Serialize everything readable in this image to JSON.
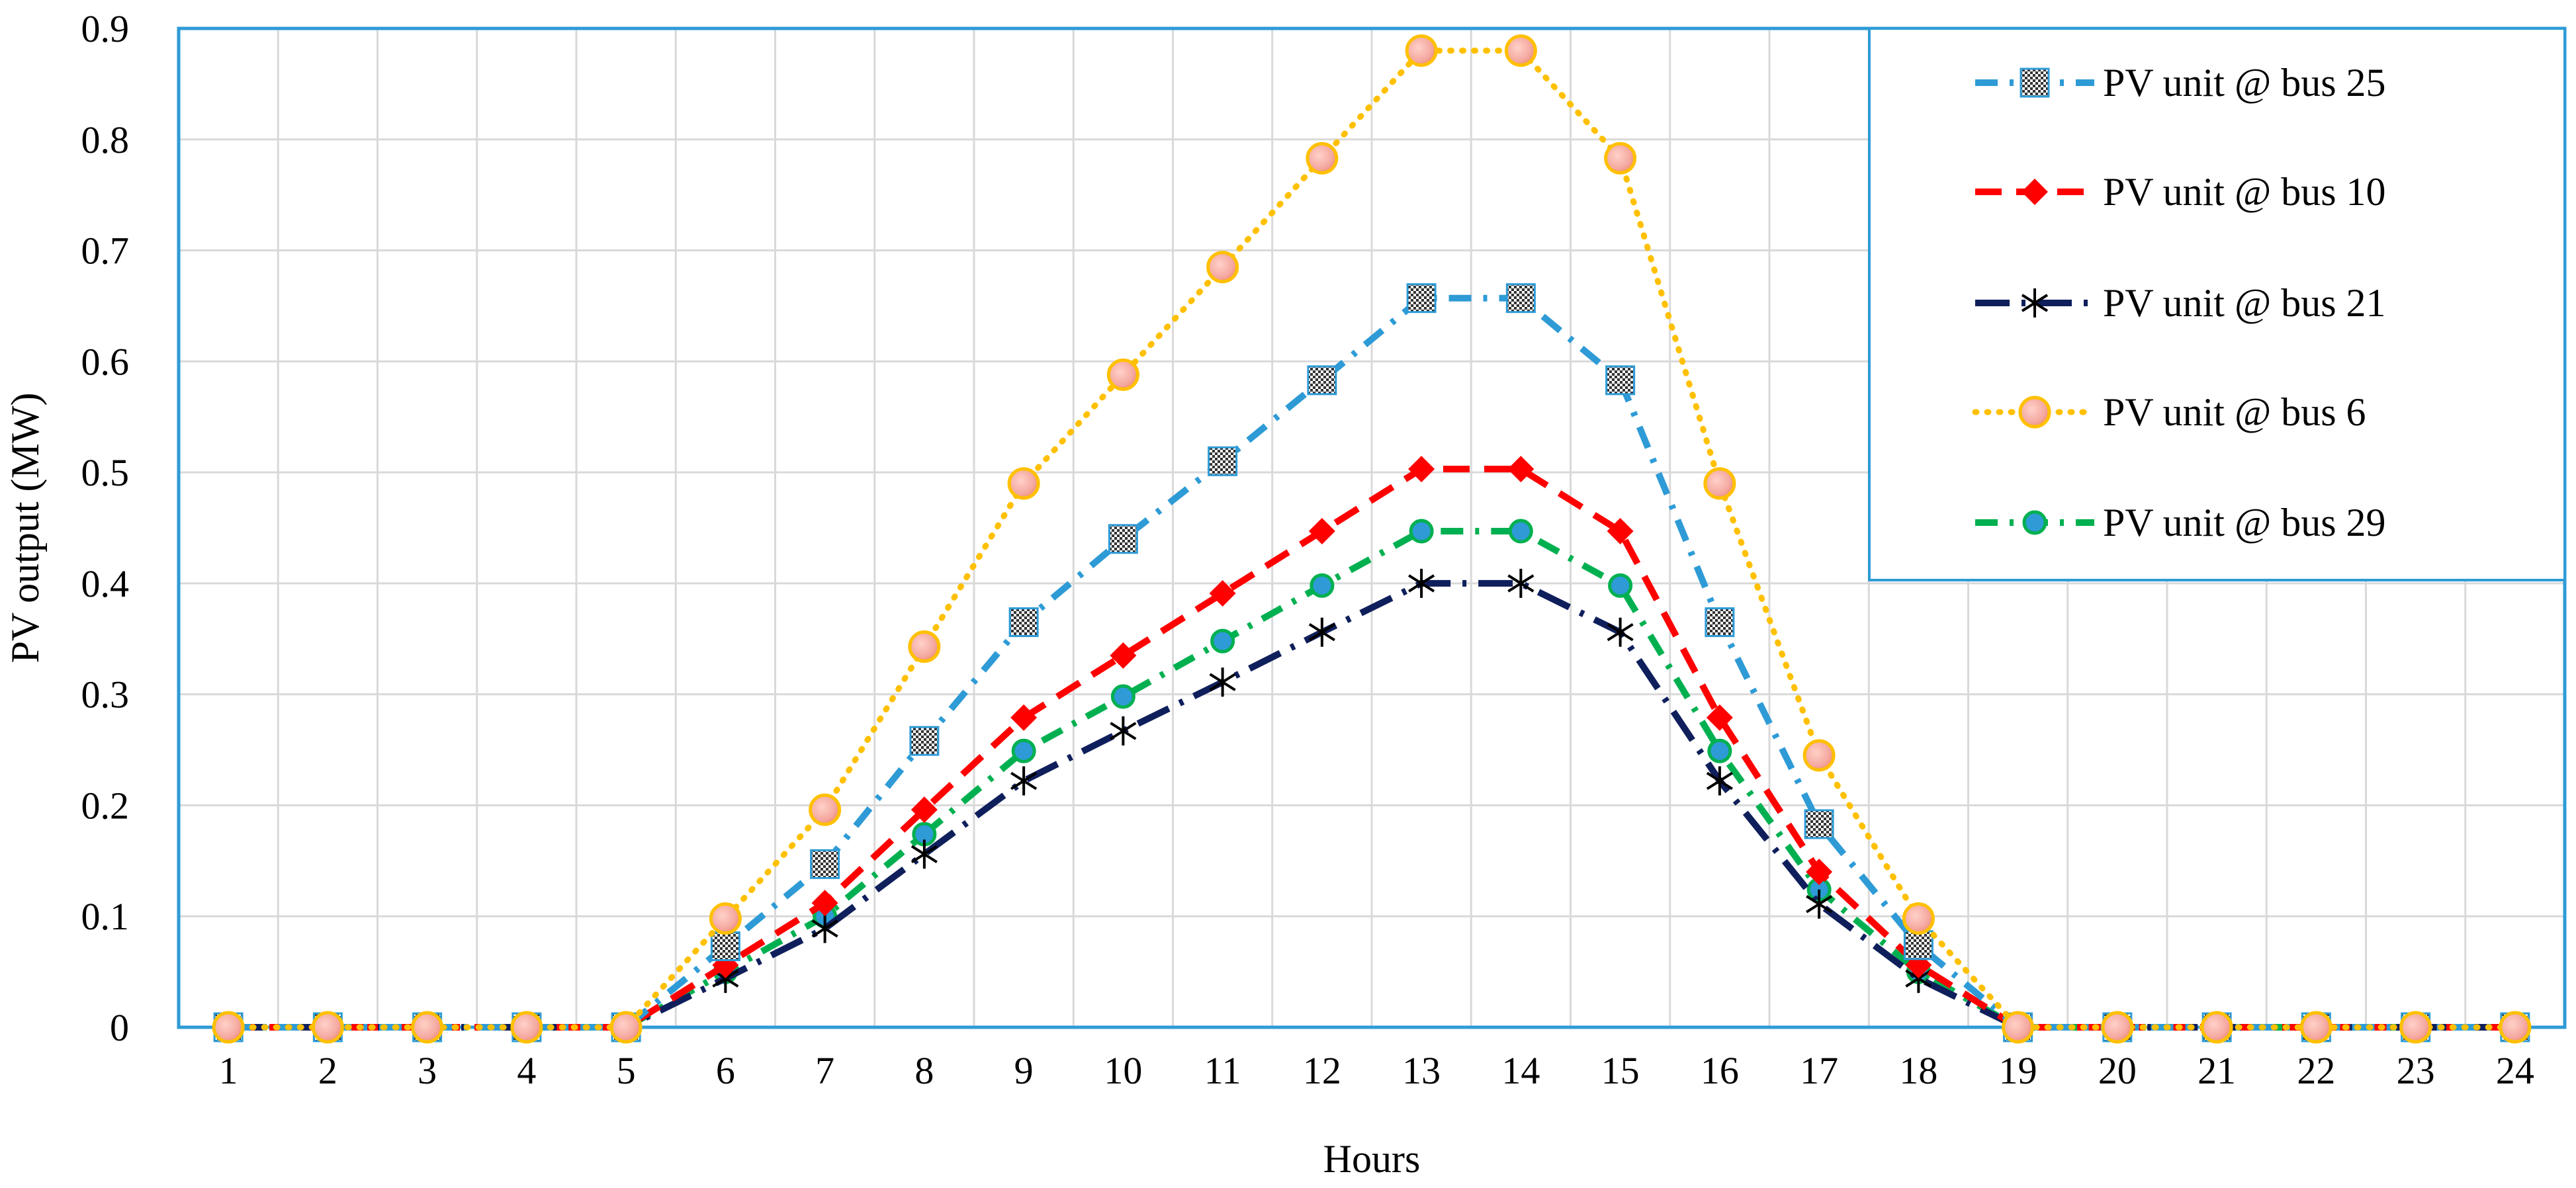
{
  "chart_data": {
    "type": "line",
    "title": "",
    "xlabel": "Hours",
    "ylabel": "PV output (MW)",
    "categories": [
      "1",
      "2",
      "3",
      "4",
      "5",
      "6",
      "7",
      "8",
      "9",
      "10",
      "11",
      "12",
      "13",
      "14",
      "15",
      "16",
      "17",
      "18",
      "19",
      "20",
      "21",
      "22",
      "23",
      "24"
    ],
    "ylim": [
      0,
      0.9
    ],
    "yticks": [
      "0",
      "0.1",
      "0.2",
      "0.3",
      "0.4",
      "0.5",
      "0.6",
      "0.7",
      "0.8",
      "0.9"
    ],
    "ytick_values": [
      0,
      0.1,
      0.2,
      0.3,
      0.4,
      0.5,
      0.6,
      0.7,
      0.8,
      0.9
    ],
    "grid": true,
    "legend_position": "top-right",
    "series": [
      {
        "name": "PV unit @ bus 25",
        "color": "#2e9bd6",
        "line_style": "dash-dot",
        "marker": "checkered-square",
        "values": [
          0,
          0,
          0,
          0,
          0,
          0.073,
          0.147,
          0.258,
          0.365,
          0.44,
          0.51,
          0.583,
          0.657,
          0.657,
          0.583,
          0.365,
          0.183,
          0.074,
          0,
          0,
          0,
          0,
          0,
          0
        ]
      },
      {
        "name": "PV unit @ bus 10",
        "color": "#ff0000",
        "line_style": "dash",
        "marker": "diamond",
        "values": [
          0,
          0,
          0,
          0,
          0,
          0.056,
          0.112,
          0.196,
          0.279,
          0.335,
          0.391,
          0.447,
          0.503,
          0.503,
          0.447,
          0.279,
          0.14,
          0.056,
          0,
          0,
          0,
          0,
          0,
          0
        ]
      },
      {
        "name": "PV unit @ bus 21",
        "color": "#0f1f5c",
        "line_style": "long-dash-dot",
        "marker": "asterisk",
        "values": [
          0,
          0,
          0,
          0,
          0,
          0.044,
          0.089,
          0.156,
          0.222,
          0.267,
          0.311,
          0.356,
          0.4,
          0.4,
          0.356,
          0.222,
          0.111,
          0.044,
          0,
          0,
          0,
          0,
          0,
          0
        ]
      },
      {
        "name": "PV unit @ bus 6",
        "color": "#ffc000",
        "line_style": "dot",
        "marker": "circle",
        "marker_fill": "#f4a8a0",
        "values": [
          0,
          0,
          0,
          0,
          0,
          0.098,
          0.196,
          0.343,
          0.49,
          0.588,
          0.685,
          0.783,
          0.88,
          0.88,
          0.783,
          0.49,
          0.245,
          0.098,
          0,
          0,
          0,
          0,
          0,
          0
        ]
      },
      {
        "name": "PV unit @ bus 29",
        "color": "#00b050",
        "line_style": "dash-dot",
        "marker": "circle",
        "marker_fill": "#2e9bd6",
        "values": [
          0,
          0,
          0,
          0,
          0,
          0.05,
          0.1,
          0.174,
          0.249,
          0.298,
          0.348,
          0.398,
          0.447,
          0.447,
          0.398,
          0.249,
          0.124,
          0.05,
          0,
          0,
          0,
          0,
          0,
          0
        ]
      }
    ]
  }
}
